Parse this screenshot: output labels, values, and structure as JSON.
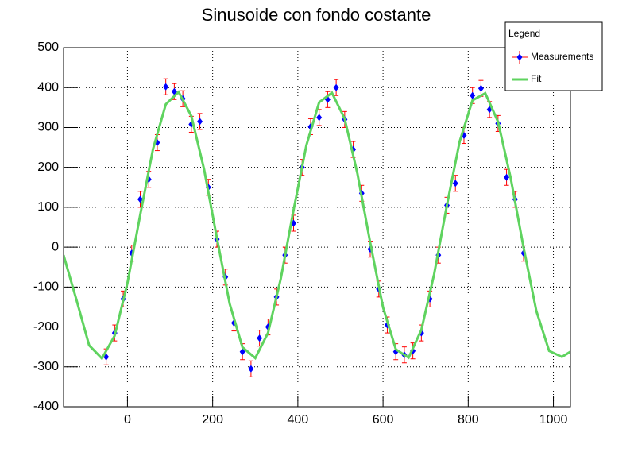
{
  "chart_data": {
    "type": "scatter",
    "title": "Sinusoide con fondo costante",
    "legend_title": "Legend",
    "xlim": [
      -150,
      1040
    ],
    "ylim": [
      -400,
      500
    ],
    "xticks": [
      0,
      200,
      400,
      600,
      800,
      1000
    ],
    "yticks": [
      -400,
      -300,
      -200,
      -100,
      0,
      100,
      200,
      300,
      400,
      500
    ],
    "grid": true,
    "legend_position": "top-right",
    "series": [
      {
        "name": "Measurements",
        "type": "errorbar",
        "color": "#0000ff",
        "error_color": "#ff0000",
        "x": [
          -50,
          -30,
          -10,
          10,
          30,
          50,
          70,
          90,
          110,
          130,
          150,
          170,
          190,
          210,
          230,
          250,
          270,
          290,
          310,
          330,
          350,
          370,
          390,
          410,
          430,
          450,
          470,
          490,
          510,
          530,
          550,
          570,
          590,
          610,
          630,
          650,
          670,
          690,
          710,
          730,
          750,
          770,
          790,
          810,
          830,
          850,
          870,
          890,
          910,
          930
        ],
        "y": [
          -275,
          -215,
          -130,
          -15,
          120,
          170,
          262,
          402,
          390,
          372,
          308,
          315,
          150,
          20,
          -75,
          -190,
          -262,
          -305,
          -228,
          -200,
          -125,
          -20,
          60,
          200,
          302,
          325,
          370,
          400,
          320,
          245,
          135,
          -5,
          -105,
          -195,
          -262,
          -270,
          -260,
          -215,
          -130,
          -20,
          105,
          160,
          280,
          380,
          398,
          345,
          310,
          175,
          120,
          -15
        ],
        "errors": [
          20,
          20,
          20,
          20,
          20,
          20,
          20,
          20,
          20,
          20,
          20,
          20,
          20,
          20,
          20,
          20,
          20,
          20,
          20,
          20,
          20,
          20,
          20,
          20,
          20,
          20,
          20,
          20,
          20,
          20,
          20,
          20,
          20,
          20,
          20,
          20,
          20,
          20,
          20,
          20,
          20,
          20,
          20,
          20,
          20,
          20,
          20,
          20,
          20,
          20
        ]
      },
      {
        "name": "Fit",
        "type": "line",
        "color": "#5fd35f",
        "x": [
          -150,
          -120,
          -90,
          -60,
          -30,
          0,
          30,
          60,
          90,
          120,
          150,
          180,
          210,
          240,
          270,
          300,
          330,
          360,
          390,
          420,
          450,
          480,
          510,
          540,
          570,
          600,
          630,
          660,
          690,
          720,
          750,
          780,
          810,
          840,
          870,
          900,
          930,
          960,
          990,
          1020,
          1040
        ],
        "y": [
          -20,
          -131,
          -246,
          -279,
          -222,
          -90,
          81,
          246,
          358,
          389,
          329,
          195,
          23,
          -142,
          -251,
          -278,
          -215,
          -79,
          93,
          255,
          363,
          387,
          322,
          184,
          11,
          -151,
          -256,
          -277,
          -207,
          -68,
          105,
          265,
          368,
          386,
          314,
          172,
          -1,
          -160,
          -260,
          -275,
          -262
        ]
      }
    ]
  }
}
